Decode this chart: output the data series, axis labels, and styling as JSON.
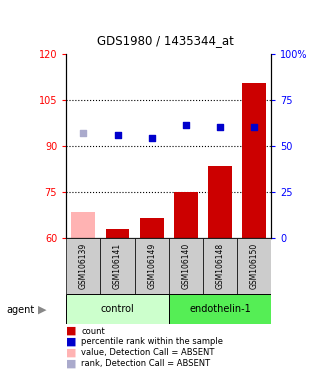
{
  "title": "GDS1980 / 1435344_at",
  "samples": [
    "GSM106139",
    "GSM106141",
    "GSM106149",
    "GSM106140",
    "GSM106148",
    "GSM106150"
  ],
  "bar_values": [
    68.5,
    63.0,
    66.5,
    75.0,
    83.5,
    110.5
  ],
  "bar_colors": [
    "#ffb3b3",
    "#cc0000",
    "#cc0000",
    "#cc0000",
    "#cc0000",
    "#cc0000"
  ],
  "rank_values": [
    57.0,
    56.0,
    54.5,
    61.5,
    60.0,
    60.0
  ],
  "rank_absent": [
    true,
    false,
    false,
    false,
    false,
    false
  ],
  "rank_colors_normal": "#0000cc",
  "rank_colors_absent": "#aaaacc",
  "ylim_left": [
    60,
    120
  ],
  "ylim_right": [
    0,
    100
  ],
  "yticks_left": [
    60,
    75,
    90,
    105,
    120
  ],
  "yticks_right": [
    0,
    25,
    50,
    75,
    100
  ],
  "ytick_labels_right": [
    "0",
    "25",
    "50",
    "75",
    "100%"
  ],
  "hlines": [
    75,
    90,
    105
  ],
  "control_group_label": "control",
  "endothelin_group_label": "endothelin-1",
  "agent_label": "agent",
  "legend_items": [
    {
      "color": "#cc0000",
      "label": "count"
    },
    {
      "color": "#0000cc",
      "label": "percentile rank within the sample"
    },
    {
      "color": "#ffb3b3",
      "label": "value, Detection Call = ABSENT"
    },
    {
      "color": "#aaaacc",
      "label": "rank, Detection Call = ABSENT"
    }
  ]
}
